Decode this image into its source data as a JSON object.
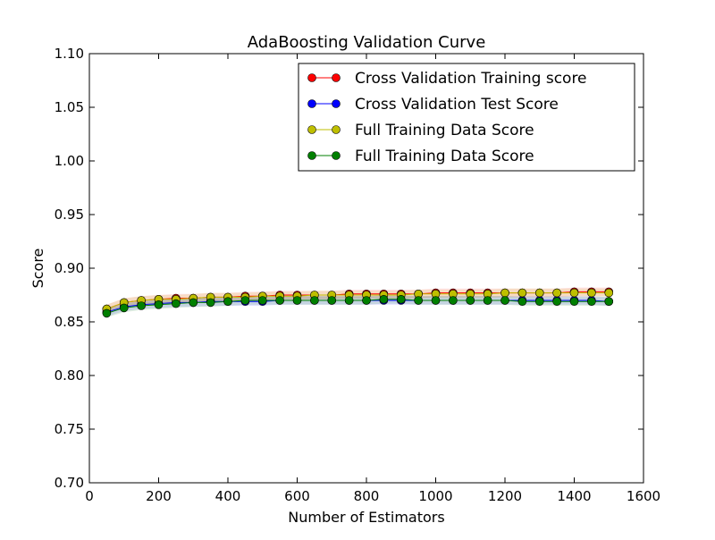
{
  "chart_data": {
    "type": "line",
    "title": "AdaBoosting Validation Curve",
    "xlabel": "Number of Estimators",
    "ylabel": "Score",
    "xlim": [
      0,
      1600
    ],
    "ylim": [
      0.7,
      1.1
    ],
    "xticks": [
      0,
      200,
      400,
      600,
      800,
      1000,
      1200,
      1400,
      1600
    ],
    "yticks": [
      0.7,
      0.75,
      0.8,
      0.85,
      0.9,
      0.95,
      1.0,
      1.05,
      1.1
    ],
    "xtick_labels": [
      "0",
      "200",
      "400",
      "600",
      "800",
      "1000",
      "1200",
      "1400",
      "1600"
    ],
    "ytick_labels": [
      "0.70",
      "0.75",
      "0.80",
      "0.85",
      "0.90",
      "0.95",
      "1.00",
      "1.05",
      "1.10"
    ],
    "grid": false,
    "legend_position": "top-right",
    "x": [
      50,
      100,
      150,
      200,
      250,
      300,
      350,
      400,
      450,
      500,
      550,
      600,
      650,
      700,
      750,
      800,
      850,
      900,
      950,
      1000,
      1050,
      1100,
      1150,
      1200,
      1250,
      1300,
      1350,
      1400,
      1450,
      1500
    ],
    "series": [
      {
        "name": "Cross Validation Training score",
        "color": "#ff0000",
        "band_color": "#ff0000",
        "values": [
          0.862,
          0.868,
          0.87,
          0.871,
          0.872,
          0.872,
          0.873,
          0.873,
          0.874,
          0.874,
          0.875,
          0.875,
          0.875,
          0.875,
          0.876,
          0.876,
          0.876,
          0.876,
          0.876,
          0.877,
          0.877,
          0.877,
          0.877,
          0.877,
          0.877,
          0.877,
          0.877,
          0.878,
          0.878,
          0.878
        ]
      },
      {
        "name": "Cross Validation Test Score",
        "color": "#0000ff",
        "band_color": "#0000ff",
        "values": [
          0.859,
          0.864,
          0.866,
          0.867,
          0.868,
          0.868,
          0.869,
          0.869,
          0.869,
          0.869,
          0.87,
          0.87,
          0.87,
          0.87,
          0.87,
          0.87,
          0.87,
          0.87,
          0.87,
          0.87,
          0.87,
          0.87,
          0.87,
          0.87,
          0.87,
          0.87,
          0.87,
          0.87,
          0.87,
          0.869
        ]
      },
      {
        "name": "Full Training Data Score",
        "color": "#bfbf00",
        "band_color": "#bfbf00",
        "values": [
          0.862,
          0.868,
          0.87,
          0.871,
          0.871,
          0.872,
          0.873,
          0.873,
          0.873,
          0.874,
          0.874,
          0.874,
          0.875,
          0.875,
          0.875,
          0.875,
          0.875,
          0.875,
          0.876,
          0.876,
          0.876,
          0.876,
          0.876,
          0.877,
          0.877,
          0.877,
          0.877,
          0.877,
          0.877,
          0.877
        ]
      },
      {
        "name": "Full Training Data Score",
        "color": "#007f00",
        "band_color": "#007f00",
        "values": [
          0.858,
          0.863,
          0.865,
          0.866,
          0.867,
          0.868,
          0.868,
          0.869,
          0.87,
          0.87,
          0.87,
          0.87,
          0.87,
          0.87,
          0.87,
          0.87,
          0.871,
          0.871,
          0.87,
          0.87,
          0.87,
          0.87,
          0.87,
          0.87,
          0.869,
          0.869,
          0.869,
          0.869,
          0.869,
          0.869
        ]
      }
    ]
  }
}
